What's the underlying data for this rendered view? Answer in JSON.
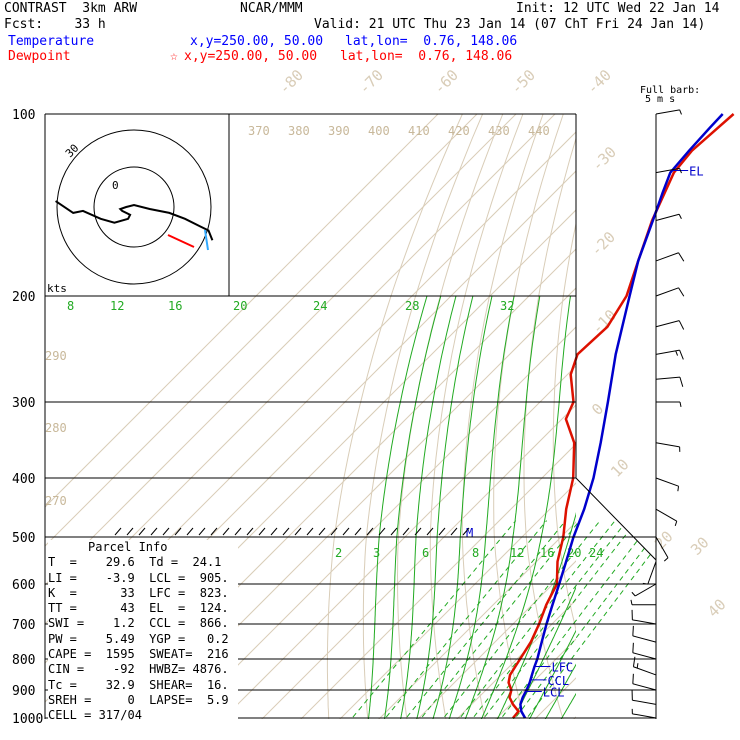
{
  "header": {
    "model": "CONTRAST  3km ARW",
    "fcst": "Fcst:    33 h",
    "center": "NCAR/MMM",
    "init": "Init: 12 UTC Wed 22 Jan 14",
    "valid": "Valid: 21 UTC Thu 23 Jan 14 (07 ChT Fri 24 Jan 14)",
    "temp_label": "Temperature",
    "temp_xy": "x,y=250.00, 50.00",
    "temp_latlon": "lat,lon=  0.76, 148.06",
    "dew_label": "Dewpoint",
    "dew_xy": "x,y=250.00, 50.00",
    "dew_latlon": "lat,lon=  0.76, 148.06",
    "dew_marker": "☆",
    "barb_title1": "Full barb:",
    "barb_title2": "5 m s"
  },
  "colors": {
    "temperature": "#0000ff",
    "dewpoint": "#ff0000",
    "parcel_trace": "#0000cc",
    "dew_trace": "#dd1100",
    "isotherm": "#d9cdb8",
    "dry_adiabat": "#d9cdb8",
    "moist_adiabat": "#22aa22",
    "mixing_ratio": "#22aa22",
    "isobar": "#000000",
    "theta_e_label": "#c8b89a"
  },
  "chart_data": {
    "type": "line",
    "title": "",
    "pressure_levels": [
      100,
      200,
      300,
      400,
      500,
      600,
      700,
      800,
      900,
      1000
    ],
    "temperature_axis_labels": [
      -80,
      -70,
      -60,
      -50,
      -40,
      -30,
      -20,
      -10,
      0,
      10,
      20,
      30,
      40
    ],
    "theta_labels_top": [
      370,
      380,
      390,
      400,
      410,
      420,
      430,
      440
    ],
    "theta_labels_left": [
      290,
      280,
      270
    ],
    "mixing_ratio_labels_upper": [
      8,
      12,
      16,
      20,
      24,
      28,
      32
    ],
    "mixing_ratio_labels_lower": [
      2,
      3,
      6,
      8,
      12,
      16,
      20,
      24
    ],
    "series": [
      {
        "name": "Temperature",
        "points": [
          [
            1000,
            27.2
          ],
          [
            975,
            24.5
          ],
          [
            950,
            22.5
          ],
          [
            925,
            21.3
          ],
          [
            900,
            20.4
          ],
          [
            875,
            19.3
          ],
          [
            850,
            17.9
          ],
          [
            825,
            16.5
          ],
          [
            800,
            15.2
          ],
          [
            750,
            12.0
          ],
          [
            700,
            8.6
          ],
          [
            650,
            5.2
          ],
          [
            600,
            1.6
          ],
          [
            550,
            -2.4
          ],
          [
            500,
            -6.8
          ],
          [
            450,
            -11.2
          ],
          [
            400,
            -16.8
          ],
          [
            350,
            -24.0
          ],
          [
            300,
            -32.6
          ],
          [
            250,
            -42.8
          ],
          [
            200,
            -54.2
          ],
          [
            175,
            -61.0
          ],
          [
            150,
            -67.6
          ],
          [
            135,
            -72.2
          ],
          [
            125,
            -75.4
          ],
          [
            115,
            -76.2
          ],
          [
            105,
            -76.8
          ],
          [
            100,
            -77.0
          ]
        ]
      },
      {
        "name": "Dewpoint",
        "points": [
          [
            1000,
            24.1
          ],
          [
            975,
            23.8
          ],
          [
            950,
            20.6
          ],
          [
            925,
            17.9
          ],
          [
            900,
            16.5
          ],
          [
            875,
            13.9
          ],
          [
            850,
            12.3
          ],
          [
            800,
            10.8
          ],
          [
            750,
            9.2
          ],
          [
            700,
            6.7
          ],
          [
            650,
            3.6
          ],
          [
            600,
            1.0
          ],
          [
            550,
            -4.6
          ],
          [
            500,
            -9.4
          ],
          [
            450,
            -15.8
          ],
          [
            400,
            -22.0
          ],
          [
            350,
            -30.8
          ],
          [
            320,
            -39.0
          ],
          [
            300,
            -41.4
          ],
          [
            270,
            -49.2
          ],
          [
            250,
            -52.6
          ],
          [
            225,
            -52.0
          ],
          [
            200,
            -55.0
          ],
          [
            175,
            -61.0
          ],
          [
            150,
            -67.8
          ],
          [
            125,
            -74.5
          ],
          [
            115,
            -75.5
          ],
          [
            100,
            -74.2
          ]
        ]
      }
    ],
    "level_markers": [
      {
        "label": "EL",
        "pressure": 124
      },
      {
        "label": "LFC",
        "pressure": 823
      },
      {
        "label": "CCL",
        "pressure": 866
      },
      {
        "label": "LCL",
        "pressure": 905
      },
      {
        "label": "M",
        "pressure": 500
      }
    ],
    "hodograph": {
      "axis_label": "kts",
      "ring_labels": [
        "30"
      ],
      "small_label": "0",
      "wind_trace": [
        [
          -40,
          3
        ],
        [
          -31,
          -3
        ],
        [
          -26,
          -2
        ],
        [
          -17,
          -6
        ],
        [
          -10,
          -8
        ],
        [
          -3,
          -6
        ],
        [
          -2,
          -4
        ],
        [
          -6,
          -2
        ],
        [
          -7,
          -1
        ],
        [
          -4,
          0
        ],
        [
          0,
          1
        ],
        [
          8,
          -1
        ],
        [
          18,
          -3
        ],
        [
          26,
          -6
        ],
        [
          34,
          -10
        ],
        [
          38,
          -12
        ],
        [
          40,
          -17
        ]
      ],
      "storm_motion": [
        [
          -12,
          -15
        ],
        [
          -4,
          -20
        ]
      ]
    },
    "wind_barbs": [
      {
        "pressure": 100,
        "speed": 5,
        "dir": 80
      },
      {
        "pressure": 125,
        "speed": 5,
        "dir": 80
      },
      {
        "pressure": 150,
        "speed": 5,
        "dir": 75
      },
      {
        "pressure": 175,
        "speed": 10,
        "dir": 70
      },
      {
        "pressure": 200,
        "speed": 10,
        "dir": 70
      },
      {
        "pressure": 225,
        "speed": 10,
        "dir": 75
      },
      {
        "pressure": 250,
        "speed": 15,
        "dir": 80
      },
      {
        "pressure": 275,
        "speed": 10,
        "dir": 85
      },
      {
        "pressure": 300,
        "speed": 5,
        "dir": 90
      },
      {
        "pressure": 350,
        "speed": 5,
        "dir": 100
      },
      {
        "pressure": 400,
        "speed": 5,
        "dir": 110
      },
      {
        "pressure": 450,
        "speed": 5,
        "dir": 120
      },
      {
        "pressure": 500,
        "speed": 5,
        "dir": 150
      },
      {
        "pressure": 550,
        "speed": 5,
        "dir": 200
      },
      {
        "pressure": 600,
        "speed": 5,
        "dir": 240
      },
      {
        "pressure": 650,
        "speed": 5,
        "dir": 270
      },
      {
        "pressure": 700,
        "speed": 10,
        "dir": 280
      },
      {
        "pressure": 750,
        "speed": 10,
        "dir": 285
      },
      {
        "pressure": 800,
        "speed": 10,
        "dir": 285
      },
      {
        "pressure": 850,
        "speed": 15,
        "dir": 290
      },
      {
        "pressure": 900,
        "speed": 10,
        "dir": 285
      },
      {
        "pressure": 950,
        "speed": 10,
        "dir": 280
      },
      {
        "pressure": 1000,
        "speed": 5,
        "dir": 280
      }
    ]
  },
  "parcel_info": {
    "title": "Parcel Info",
    "rows": [
      "T  =    29.6  Td =  24.1",
      "LI =    -3.9  LCL =  905.",
      "K  =      33  LFC =  823.",
      "TT =      43  EL  =  124.",
      "SWI =    1.2  CCL =  866.",
      "PW =    5.49  YGP =   0.2",
      "CAPE =  1595  SWEAT=  216",
      "CIN =    -92  HWBZ= 4876.",
      "Tc =    32.9  SHEAR=  16.",
      "SREH =     0  LAPSE=  5.9",
      "CELL = 317/04"
    ]
  }
}
